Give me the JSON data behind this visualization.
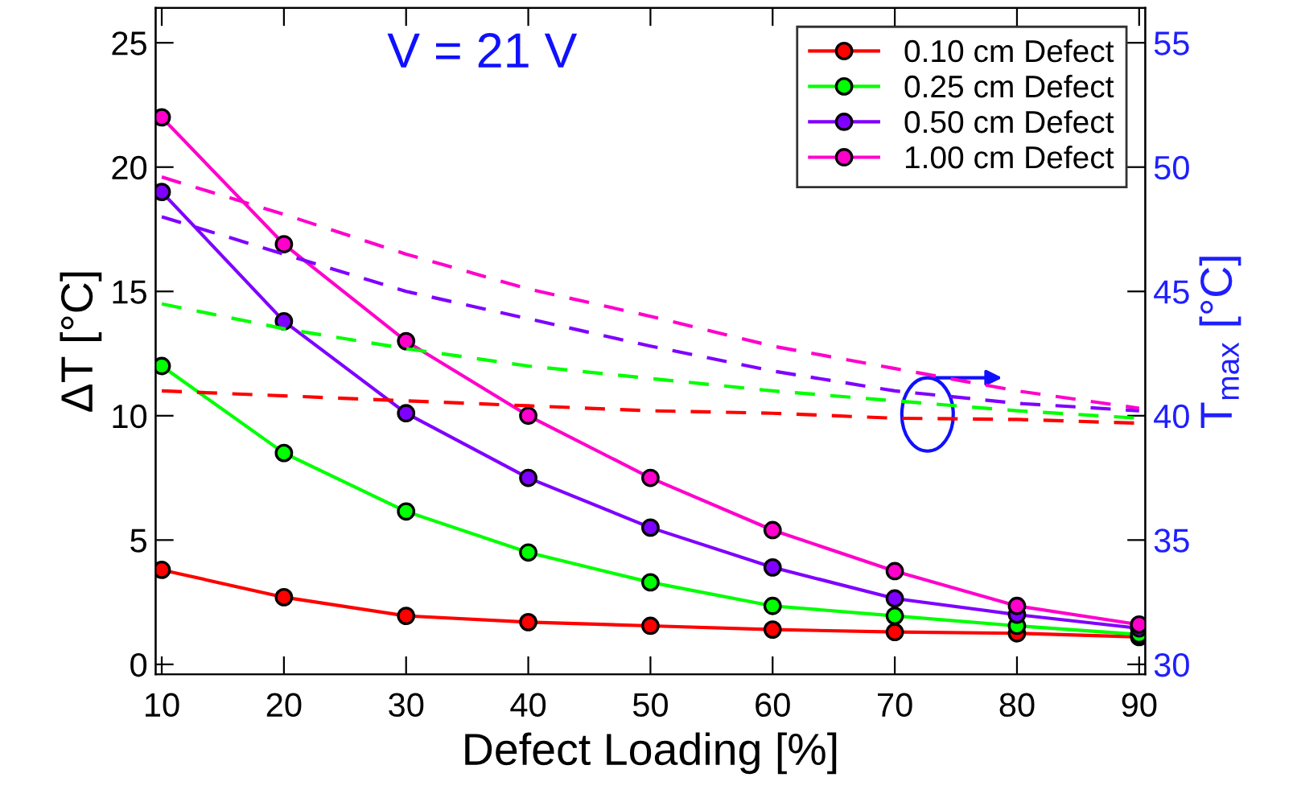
{
  "chart_data": {
    "type": "line",
    "xlabel": "Defect Loading [%]",
    "ylabel": "ΔT [°C]",
    "y2label": "T$_{max}$ [°C]",
    "annotations": [
      "V = 21 V"
    ],
    "x": [
      10,
      20,
      30,
      40,
      50,
      60,
      70,
      80,
      90
    ],
    "xlim": [
      9.5,
      90.5
    ],
    "xticks": [
      10,
      20,
      30,
      40,
      50,
      60,
      70,
      80,
      90
    ],
    "ylim": [
      -0.4,
      26.4
    ],
    "yticks": [
      0,
      5,
      10,
      15,
      20,
      25
    ],
    "y2lim": [
      29.6,
      56.4
    ],
    "y2ticks": [
      30,
      35,
      40,
      45,
      50,
      55
    ],
    "grid": false,
    "legend": "top right",
    "marker": "circle",
    "series": [
      {
        "name": "0.10 cm Defect",
        "color": "#ff0000",
        "values": [
          3.8,
          2.7,
          1.95,
          1.7,
          1.55,
          1.4,
          1.3,
          1.25,
          1.1
        ]
      },
      {
        "name": "0.25 cm Defect",
        "color": "#00ff00",
        "values": [
          12.0,
          8.5,
          6.15,
          4.5,
          3.3,
          2.35,
          1.95,
          1.55,
          1.2
        ]
      },
      {
        "name": "0.50 cm Defect",
        "color": "#7f00ff",
        "values": [
          19.0,
          13.8,
          10.1,
          7.5,
          5.5,
          3.9,
          2.65,
          2.0,
          1.45
        ]
      },
      {
        "name": "1.00 cm Defect",
        "color": "#ff00cc",
        "values": [
          22.0,
          16.9,
          13.0,
          10.0,
          7.5,
          5.4,
          3.75,
          2.35,
          1.6
        ]
      },
      {
        "axis": "y2",
        "line_style": "dashed",
        "marker": "none",
        "color": "#ff0000",
        "values": [
          41.0,
          40.8,
          40.6,
          40.4,
          40.2,
          40.1,
          39.9,
          39.85,
          39.7
        ]
      },
      {
        "axis": "y2",
        "line_style": "dashed",
        "marker": "none",
        "color": "#00ff00",
        "values": [
          44.5,
          43.5,
          42.7,
          42.0,
          41.5,
          41.0,
          40.6,
          40.2,
          39.9
        ]
      },
      {
        "axis": "y2",
        "line_style": "dashed",
        "marker": "none",
        "color": "#7f00ff",
        "values": [
          48.0,
          46.5,
          45.0,
          43.9,
          42.8,
          41.8,
          41.0,
          40.5,
          40.2
        ]
      },
      {
        "axis": "y2",
        "line_style": "dashed",
        "marker": "none",
        "color": "#ff00cc",
        "values": [
          49.6,
          48.1,
          46.5,
          45.1,
          44.0,
          42.8,
          41.9,
          41.0,
          40.3
        ]
      }
    ]
  }
}
